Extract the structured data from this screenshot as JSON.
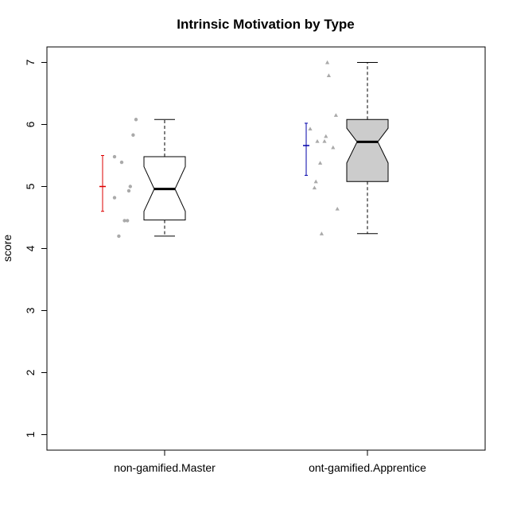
{
  "chart_data": {
    "type": "boxplot",
    "title": "Intrinsic Motivation by Type",
    "xlabel": "",
    "ylabel": "score",
    "ylim": [
      0.75,
      7.25
    ],
    "yticks": [
      1,
      2,
      3,
      4,
      5,
      6,
      7
    ],
    "categories": [
      "non-gamified.Master",
      "ont-gamified.Apprentice"
    ],
    "grid": false,
    "groups": [
      {
        "label": "non-gamified.Master",
        "box": {
          "whisker_low": 4.2,
          "q1": 4.46,
          "median": 4.96,
          "q3": 5.48,
          "whisker_high": 6.08,
          "notch_low": 4.6,
          "notch_high": 5.32
        },
        "box_fill": "#ffffff",
        "mean": 5.0,
        "ci": [
          4.6,
          5.5
        ],
        "ci_color": "#dd0000",
        "point_shape": "circle",
        "points": [
          {
            "x": -0.35,
            "y": 5.48
          },
          {
            "x": -0.3,
            "y": 5.39
          },
          {
            "x": -0.35,
            "y": 4.82
          },
          {
            "x": -0.32,
            "y": 4.2
          },
          {
            "x": -0.28,
            "y": 4.45
          },
          {
            "x": -0.26,
            "y": 4.45
          },
          {
            "x": -0.25,
            "y": 4.93
          },
          {
            "x": -0.24,
            "y": 5.0
          },
          {
            "x": -0.22,
            "y": 5.83
          },
          {
            "x": -0.2,
            "y": 6.08
          }
        ]
      },
      {
        "label": "ont-gamified.Apprentice",
        "box": {
          "whisker_low": 4.24,
          "q1": 5.08,
          "median": 5.72,
          "q3": 6.08,
          "whisker_high": 7.0,
          "notch_low": 5.38,
          "notch_high": 5.94
        },
        "box_fill": "#cccccc",
        "mean": 5.66,
        "ci": [
          5.18,
          6.02
        ],
        "ci_color": "#0000aa",
        "point_shape": "triangle",
        "points": [
          {
            "x": -0.4,
            "y": 5.93
          },
          {
            "x": -0.35,
            "y": 5.73
          },
          {
            "x": -0.36,
            "y": 5.08
          },
          {
            "x": -0.37,
            "y": 4.98
          },
          {
            "x": -0.33,
            "y": 5.38
          },
          {
            "x": -0.3,
            "y": 5.73
          },
          {
            "x": -0.32,
            "y": 4.24
          },
          {
            "x": -0.29,
            "y": 5.81
          },
          {
            "x": -0.28,
            "y": 7.0
          },
          {
            "x": -0.27,
            "y": 6.79
          },
          {
            "x": -0.24,
            "y": 5.63
          },
          {
            "x": -0.22,
            "y": 6.15
          },
          {
            "x": -0.21,
            "y": 4.64
          }
        ]
      }
    ],
    "point_color": "#aaaaaa"
  }
}
